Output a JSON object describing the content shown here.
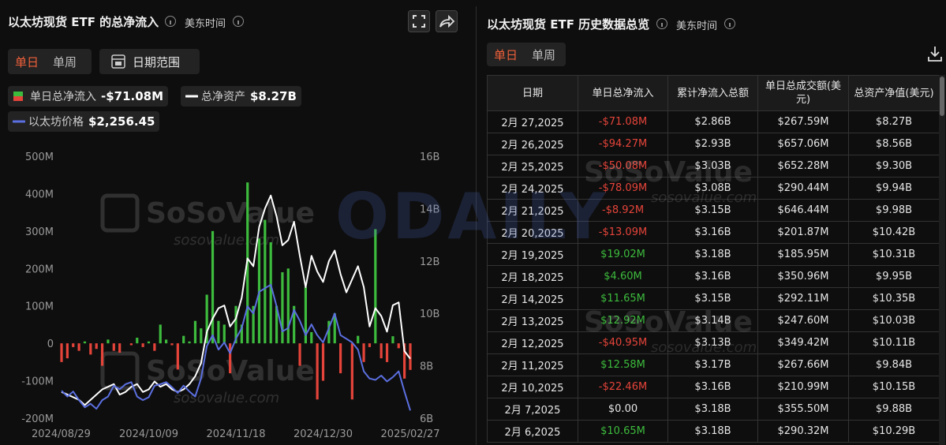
{
  "chart_data": {
    "type": "bar",
    "title": "以太坊现货 ETF 的总净流入",
    "timezone": "美东时间",
    "tabs": [
      "单日",
      "单周"
    ],
    "range_button": "日期范围",
    "categories": [
      "2024/08/29",
      null,
      null,
      null,
      null,
      null,
      null,
      null,
      null,
      null,
      null,
      null,
      null,
      null,
      null,
      "2024/10/09",
      null,
      null,
      null,
      null,
      null,
      null,
      null,
      null,
      null,
      null,
      null,
      null,
      null,
      null,
      "2024/11/18",
      null,
      null,
      null,
      null,
      null,
      null,
      null,
      null,
      null,
      null,
      null,
      null,
      null,
      null,
      "2024/12/30",
      null,
      null,
      null,
      null,
      null,
      null,
      null,
      null,
      null,
      null,
      null,
      null,
      null,
      null,
      "2025/02/27"
    ],
    "series": [
      {
        "name": "单日总净流入",
        "type": "bar",
        "latest": "-$71.08M",
        "positive_color": "#3dbb3d",
        "negative_color": "#e5443a",
        "values": [
          -50,
          -40,
          -10,
          -20,
          5,
          -30,
          -15,
          -60,
          10,
          -20,
          -25,
          0,
          -5,
          15,
          -10,
          5,
          -20,
          50,
          10,
          -5,
          -70,
          20,
          5,
          60,
          40,
          130,
          300,
          60,
          50,
          -80,
          100,
          50,
          430,
          100,
          280,
          330,
          270,
          100,
          190,
          200,
          100,
          -60,
          150,
          30,
          -150,
          -100,
          60,
          80,
          -80,
          0,
          -150,
          20,
          -50,
          -10,
          305,
          -40,
          -50.08,
          19.02,
          -13.09,
          -94.27,
          -71.08
        ]
      },
      {
        "name": "总净资产",
        "type": "line",
        "axis": "y2",
        "latest": "$8.27B",
        "color": "#ffffff",
        "values": [
          7.0,
          6.9,
          6.8,
          6.7,
          6.5,
          6.7,
          6.9,
          7.1,
          7.2,
          7.3,
          6.9,
          7.0,
          7.2,
          7.3,
          7.0,
          7.1,
          7.4,
          7.2,
          7.3,
          7.1,
          7.0,
          7.1,
          7.3,
          7.6,
          8.1,
          9.3,
          9.8,
          10.2,
          10.3,
          9.5,
          9.8,
          10.6,
          12.1,
          11.8,
          13.3,
          14.0,
          14.5,
          13.7,
          12.6,
          12.8,
          13.5,
          12.2,
          11.0,
          12.2,
          11.6,
          11.2,
          12.0,
          12.4,
          11.5,
          10.8,
          11.3,
          11.8,
          11.0,
          9.5,
          10.2,
          9.9,
          9.3,
          10.31,
          10.42,
          8.56,
          8.27
        ]
      },
      {
        "name": "以太坊价格",
        "type": "line",
        "axis": "y3",
        "latest": "$2,256.45",
        "color": "#5b6fe0",
        "values": [
          2530,
          2450,
          2520,
          2400,
          2300,
          2350,
          2280,
          2400,
          2450,
          2600,
          2550,
          2620,
          2650,
          2450,
          2400,
          2440,
          2600,
          2620,
          2650,
          2580,
          2500,
          2600,
          2520,
          2450,
          2700,
          3150,
          3300,
          3100,
          3200,
          3050,
          3250,
          3400,
          3700,
          3600,
          3900,
          3950,
          4000,
          3700,
          3350,
          3400,
          3650,
          3500,
          3300,
          3450,
          3300,
          3200,
          3400,
          3600,
          3300,
          3250,
          3200,
          3100,
          2800,
          2700,
          2680,
          2740,
          2660,
          2720,
          2800,
          2520,
          2256.45
        ]
      }
    ],
    "ylim": [
      -200,
      500
    ],
    "yticks": [
      {
        "value": 500,
        "label": "500M"
      },
      {
        "value": 400,
        "label": "400M"
      },
      {
        "value": 300,
        "label": "300M"
      },
      {
        "value": 200,
        "label": "200M"
      },
      {
        "value": 100,
        "label": "100M"
      },
      0,
      {
        "value": -100,
        "label": "-100M"
      },
      {
        "value": -200,
        "label": "-200M"
      }
    ],
    "y2lim": [
      6,
      16
    ],
    "y2ticks": [
      {
        "value": 16,
        "label": "16B"
      },
      {
        "value": 14,
        "label": "14B"
      },
      {
        "value": 12,
        "label": "12B"
      },
      {
        "value": 10,
        "label": "10B"
      },
      {
        "value": 8,
        "label": "8B"
      },
      {
        "value": 6,
        "label": "6B"
      }
    ],
    "y3lim": [
      2150,
      5780
    ],
    "grid": false,
    "watermark": [
      "SoSoValue",
      "sosovalue.com"
    ]
  },
  "table": {
    "title": "以太坊现货 ETF 历史数据总览",
    "timezone": "美东时间",
    "tabs": [
      "单日",
      "单周"
    ],
    "headers": [
      "日期",
      "单日总净流入",
      "累计净流入总额",
      "单日总成交额(美元)",
      "总资产净值(美元)"
    ],
    "rows": [
      [
        "2月 27,2025",
        "-$71.08M",
        "$2.86B",
        "$267.59M",
        "$8.27B"
      ],
      [
        "2月 26,2025",
        "-$94.27M",
        "$2.93B",
        "$657.06M",
        "$8.56B"
      ],
      [
        "2月 25,2025",
        "-$50.08M",
        "$3.03B",
        "$652.28M",
        "$9.30B"
      ],
      [
        "2月 24,2025",
        "-$78.09M",
        "$3.08B",
        "$290.44M",
        "$9.94B"
      ],
      [
        "2月 21,2025",
        "-$8.92M",
        "$3.15B",
        "$646.44M",
        "$9.98B"
      ],
      [
        "2月 20,2025",
        "-$13.09M",
        "$3.16B",
        "$201.87M",
        "$10.42B"
      ],
      [
        "2月 19,2025",
        "$19.02M",
        "$3.18B",
        "$185.95M",
        "$10.31B"
      ],
      [
        "2月 18,2025",
        "$4.60M",
        "$3.16B",
        "$350.96M",
        "$9.95B"
      ],
      [
        "2月 14,2025",
        "$11.65M",
        "$3.15B",
        "$292.11M",
        "$10.35B"
      ],
      [
        "2月 13,2025",
        "$12.92M",
        "$3.14B",
        "$247.60M",
        "$10.03B"
      ],
      [
        "2月 12,2025",
        "-$40.95M",
        "$3.13B",
        "$349.42M",
        "$10.11B"
      ],
      [
        "2月 11,2025",
        "$12.58M",
        "$3.17B",
        "$267.66M",
        "$9.84B"
      ],
      [
        "2月 10,2025",
        "-$22.46M",
        "$3.16B",
        "$210.99M",
        "$10.15B"
      ],
      [
        "2月 7,2025",
        "$0.00",
        "$3.18B",
        "$355.50M",
        "$9.88B"
      ],
      [
        "2月 6,2025",
        "$10.65M",
        "$3.18B",
        "$290.32M",
        "$10.29B"
      ]
    ]
  },
  "overlay_watermark": "ODAILY"
}
